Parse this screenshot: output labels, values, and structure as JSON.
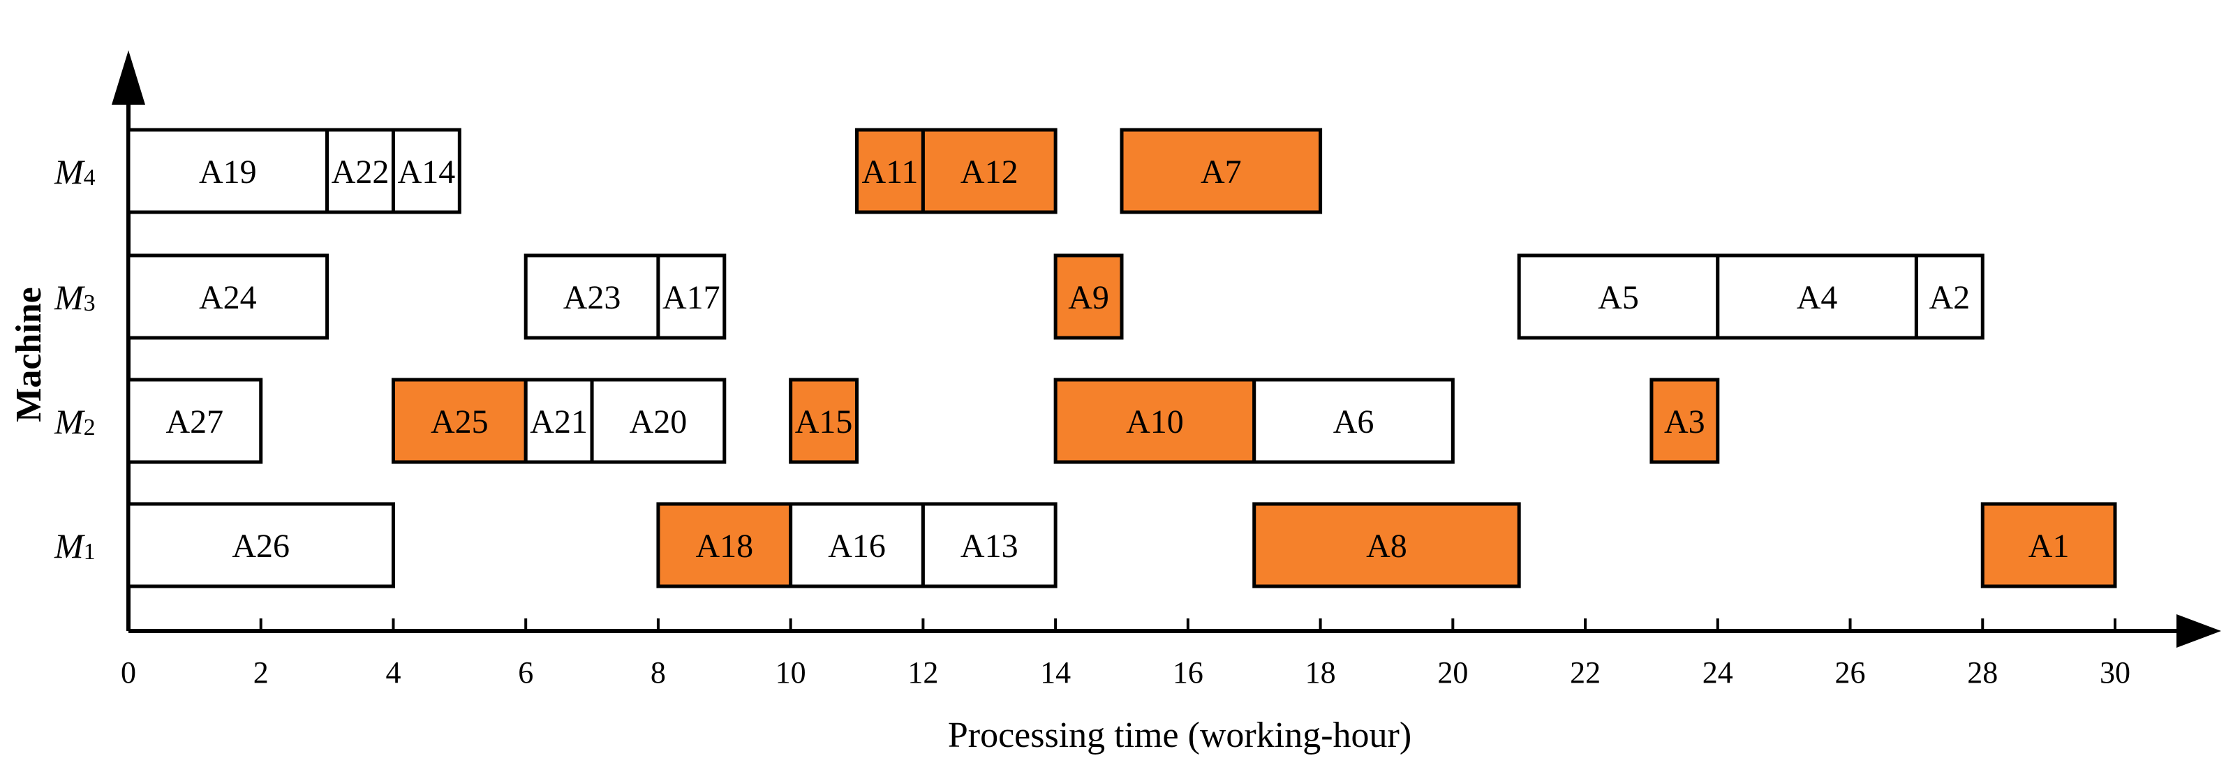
{
  "chart_data": {
    "type": "gantt",
    "xlabel": "Processing time (working-hour)",
    "ylabel": "Machine",
    "xlim": [
      0,
      30
    ],
    "x_ticks": [
      "0",
      "2",
      "4",
      "6",
      "8",
      "10",
      "12",
      "14",
      "16",
      "18",
      "20",
      "22",
      "24",
      "26",
      "28",
      "30"
    ],
    "machines": [
      {
        "id": "M4",
        "letter": "M",
        "sub": "4"
      },
      {
        "id": "M3",
        "letter": "M",
        "sub": "3"
      },
      {
        "id": "M2",
        "letter": "M",
        "sub": "2"
      },
      {
        "id": "M1",
        "letter": "M",
        "sub": "1"
      }
    ],
    "colors": {
      "highlight": "#F5812B",
      "plain": "#FFFFFF",
      "border": "#000000"
    },
    "tasks": [
      {
        "label": "A19",
        "machine": "M4",
        "start": 0,
        "end": 3,
        "highlight": false
      },
      {
        "label": "A22",
        "machine": "M4",
        "start": 3,
        "end": 4,
        "highlight": false
      },
      {
        "label": "A14",
        "machine": "M4",
        "start": 4,
        "end": 5,
        "highlight": false
      },
      {
        "label": "A11",
        "machine": "M4",
        "start": 11,
        "end": 12,
        "highlight": true
      },
      {
        "label": "A12",
        "machine": "M4",
        "start": 12,
        "end": 14,
        "highlight": true
      },
      {
        "label": "A7",
        "machine": "M4",
        "start": 15,
        "end": 18,
        "highlight": true
      },
      {
        "label": "A24",
        "machine": "M3",
        "start": 0,
        "end": 3,
        "highlight": false
      },
      {
        "label": "A23",
        "machine": "M3",
        "start": 6,
        "end": 8,
        "highlight": false
      },
      {
        "label": "A17",
        "machine": "M3",
        "start": 8,
        "end": 9,
        "highlight": false
      },
      {
        "label": "A9",
        "machine": "M3",
        "start": 14,
        "end": 15,
        "highlight": true
      },
      {
        "label": "A5",
        "machine": "M3",
        "start": 21,
        "end": 24,
        "highlight": false
      },
      {
        "label": "A4",
        "machine": "M3",
        "start": 24,
        "end": 27,
        "highlight": false
      },
      {
        "label": "A2",
        "machine": "M3",
        "start": 27,
        "end": 28,
        "highlight": false
      },
      {
        "label": "A27",
        "machine": "M2",
        "start": 0,
        "end": 2,
        "highlight": false
      },
      {
        "label": "A25",
        "machine": "M2",
        "start": 4,
        "end": 6,
        "highlight": true
      },
      {
        "label": "A21",
        "machine": "M2",
        "start": 6,
        "end": 7,
        "highlight": false
      },
      {
        "label": "A20",
        "machine": "M2",
        "start": 7,
        "end": 9,
        "highlight": false
      },
      {
        "label": "A15",
        "machine": "M2",
        "start": 10,
        "end": 11,
        "highlight": true
      },
      {
        "label": "A10",
        "machine": "M2",
        "start": 14,
        "end": 17,
        "highlight": true
      },
      {
        "label": "A6",
        "machine": "M2",
        "start": 17,
        "end": 20,
        "highlight": false
      },
      {
        "label": "A3",
        "machine": "M2",
        "start": 23,
        "end": 24,
        "highlight": true
      },
      {
        "label": "A26",
        "machine": "M1",
        "start": 0,
        "end": 4,
        "highlight": false
      },
      {
        "label": "A18",
        "machine": "M1",
        "start": 8,
        "end": 10,
        "highlight": true
      },
      {
        "label": "A16",
        "machine": "M1",
        "start": 10,
        "end": 12,
        "highlight": false
      },
      {
        "label": "A13",
        "machine": "M1",
        "start": 12,
        "end": 14,
        "highlight": false
      },
      {
        "label": "A8",
        "machine": "M1",
        "start": 17,
        "end": 21,
        "highlight": true
      },
      {
        "label": "A1",
        "machine": "M1",
        "start": 28,
        "end": 30,
        "highlight": true
      }
    ]
  }
}
